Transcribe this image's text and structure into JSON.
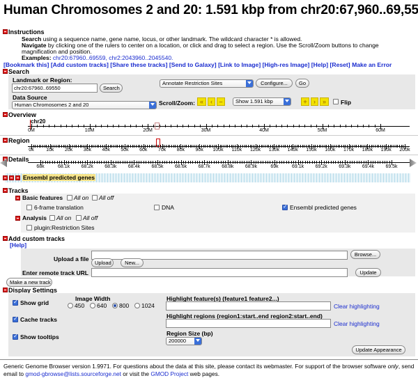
{
  "title": "Human Chromosomes 2 and 20: 1.591 kbp from chr20:67,960..69,550",
  "instructions": {
    "header": "Instructions",
    "search_label": "Search",
    "search_text": "using a sequence name, gene name, locus, or other landmark. The wildcard character * is allowed.",
    "navigate_label": "Navigate",
    "navigate_text1": "by clicking one of the rulers to center on a location, or click and drag to select a region. Use the Scroll/Zoom buttons to change",
    "navigate_text2": "magnification and position.",
    "examples_label": "Examples:",
    "examples": "chr20:67960..69559, chr2:2043960..2045540."
  },
  "links": [
    "[Bookmark this]",
    "[Add custom tracks]",
    "[Share these tracks]",
    "[Send to Galaxy]",
    "[Link to Image]",
    "[High-res Image]",
    "[Help]",
    "[Reset]",
    "Make an Error"
  ],
  "search": {
    "header": "Search",
    "landmark_label": "Landmark or Region:",
    "landmark_value": "chr20:67960..69550",
    "search_button": "Search",
    "annotate_value": "Annotate Restriction Sites",
    "configure_button": "Configure...",
    "go_button": "Go",
    "datasource_label": "Data Source",
    "datasource_value": "Human Chromosomes 2 and 20",
    "scroll_label": "Scroll/Zoom:",
    "zoom_value": "Show 1.591 kbp",
    "flip_label": "Flip"
  },
  "overview": {
    "header": "Overview",
    "chrom": "chr20",
    "ticks": [
      "0M",
      "10M",
      "20M",
      "30M",
      "40M",
      "50M",
      "60M"
    ]
  },
  "region": {
    "header": "Region",
    "ticks": [
      "0k",
      "10k",
      "20k",
      "30k",
      "40k",
      "50k",
      "60k",
      "70k",
      "80k",
      "90k",
      "100k",
      "110k",
      "120k",
      "130k",
      "140k",
      "150k",
      "160k",
      "170k",
      "180k",
      "190k",
      "200k"
    ]
  },
  "details": {
    "header": "Details",
    "ticks": [
      "68k",
      "68.1k",
      "68.2k",
      "68.3k",
      "68.4k",
      "68.5k",
      "68.6k",
      "68.7k",
      "68.8k",
      "68.9k",
      "69k",
      "69.1k",
      "69.2k",
      "69.3k",
      "69.4k",
      "69.5k"
    ],
    "track_label": "Ensembl predicted genes"
  },
  "tracks": {
    "header": "Tracks",
    "basic_label": "Basic features",
    "all_on": "All on",
    "all_off": "All off",
    "frame": "6-frame translation",
    "dna": "DNA",
    "ensembl": "Ensembl predicted genes",
    "analysis_label": "Analysis",
    "plugin": "plugin:Restriction Sites"
  },
  "custom": {
    "header": "Add custom tracks",
    "help": "[Help]",
    "upload_label": "Upload a file",
    "browse_button": "Browse...",
    "upload_button": "Upload",
    "new_button": "New...",
    "remote_label": "Enter remote track URL",
    "update_button": "Update",
    "make_track_button": "Make a new track"
  },
  "display": {
    "header": "Display Settings",
    "show_grid": "Show grid",
    "cache_tracks": "Cache tracks",
    "show_tooltips": "Show tooltips",
    "image_width_label": "Image Width",
    "widths": [
      "450",
      "640",
      "800",
      "1024"
    ],
    "highlight_features_label": "Highlight feature(s) (feature1 feature2...)",
    "clear_highlighting": "Clear highlighting",
    "highlight_regions_label": "Highlight regions (region1:start..end region2:start..end)",
    "region_size_label": "Region Size (bp)",
    "region_size_value": "200000",
    "update_appearance_button": "Update Appearance"
  },
  "footer": {
    "text1": "Generic Genome Browser version 1.9971. For questions about the data at this site, please contact its webmaster. For support of the browser software",
    "only": "only",
    "text2": ", send email to",
    "email": "gmod-gbrowse@lists.sourceforge.net",
    "text3": "or visit the",
    "project": "GMOD Project",
    "text4": "web pages."
  },
  "colors": {
    "toggle": "#dd2222",
    "link": "#1a2ccf",
    "yellow_button": "#f2e200",
    "highlight": "#cc0000"
  }
}
